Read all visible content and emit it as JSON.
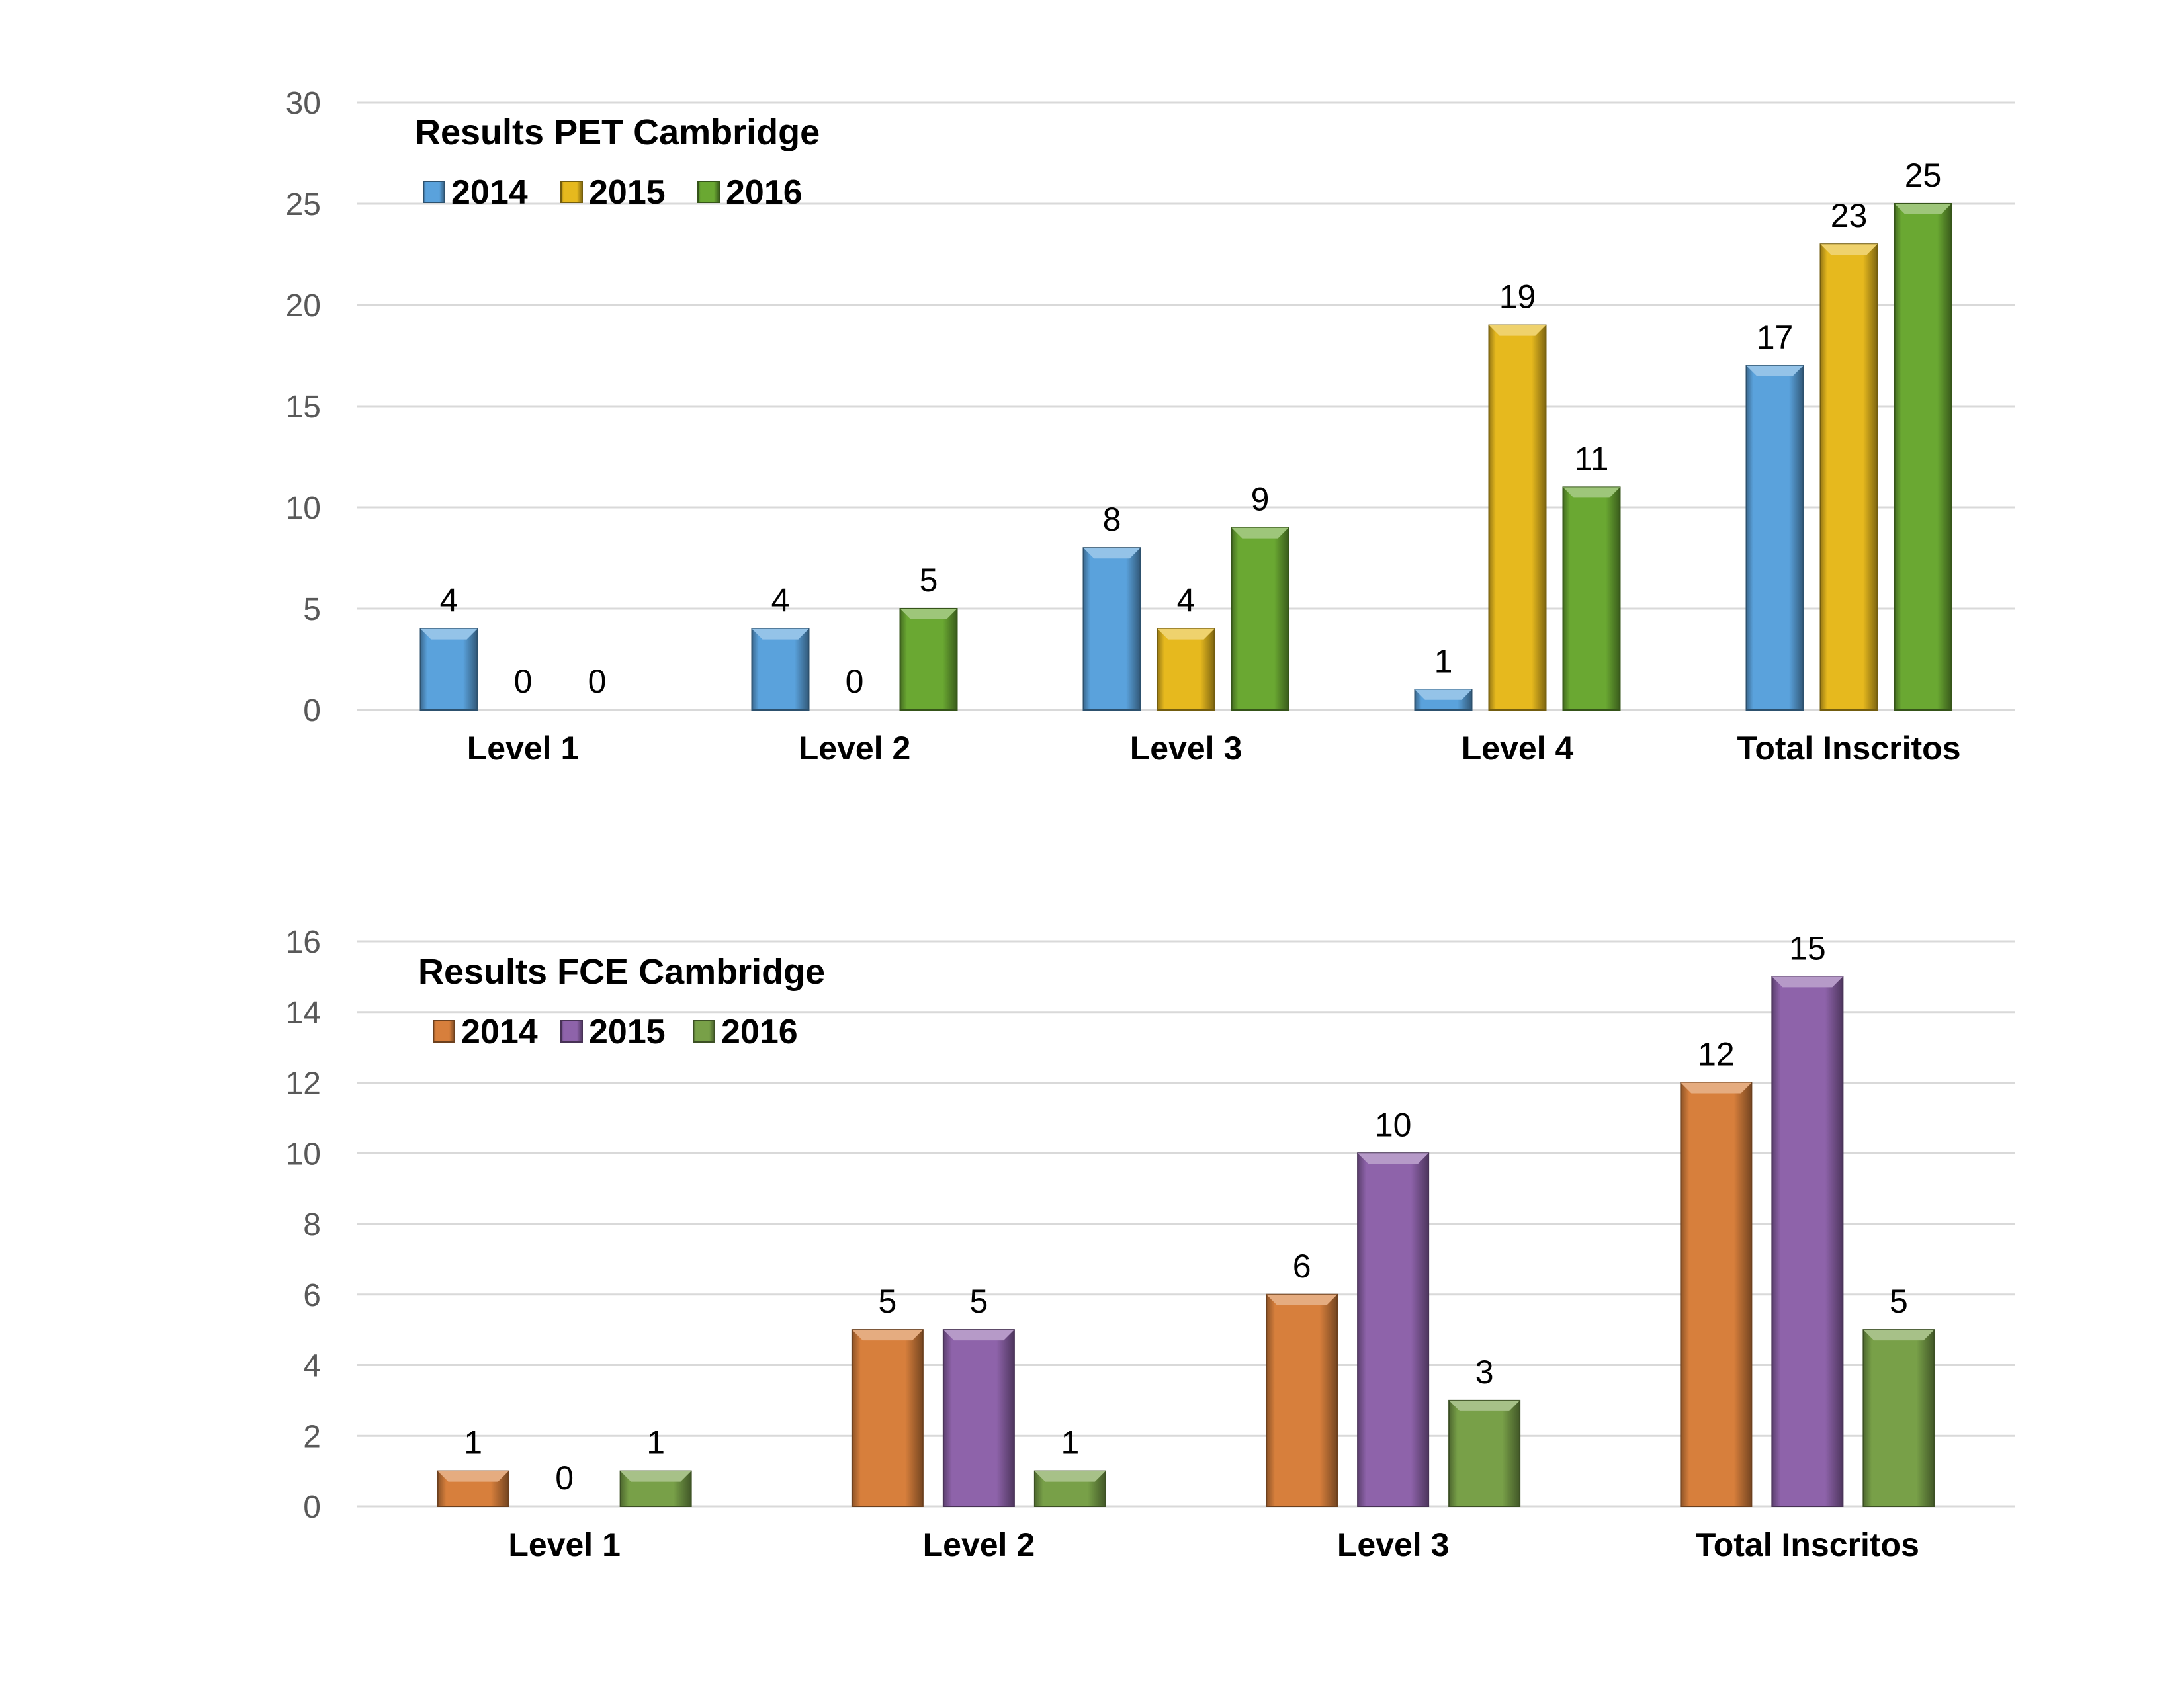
{
  "chart_data": [
    {
      "type": "bar",
      "title": "Results PET Cambridge",
      "categories": [
        "Level 1",
        "Level 2",
        "Level 3",
        "Level 4",
        "Total Inscritos"
      ],
      "series": [
        {
          "name": "2014",
          "values": [
            4,
            4,
            8,
            1,
            17
          ],
          "color": "#5aa2dc"
        },
        {
          "name": "2015",
          "values": [
            0,
            0,
            4,
            19,
            23
          ],
          "color": "#e6b91e"
        },
        {
          "name": "2016",
          "values": [
            0,
            5,
            9,
            11,
            25
          ],
          "color": "#6aa832"
        }
      ],
      "ylim": [
        0,
        30
      ],
      "yticks": [
        0,
        5,
        10,
        15,
        20,
        25,
        30
      ],
      "xlabel": "",
      "ylabel": "",
      "grid": true,
      "legend": "top-left"
    },
    {
      "type": "bar",
      "title": "Results FCE Cambridge",
      "categories": [
        "Level 1",
        "Level 2",
        "Level 3",
        "Total Inscritos"
      ],
      "series": [
        {
          "name": "2014",
          "values": [
            1,
            5,
            6,
            12
          ],
          "color": "#d77f3c"
        },
        {
          "name": "2015",
          "values": [
            0,
            5,
            10,
            15
          ],
          "color": "#8e63aa"
        },
        {
          "name": "2016",
          "values": [
            1,
            1,
            3,
            5
          ],
          "color": "#78a048"
        }
      ],
      "ylim": [
        0,
        16
      ],
      "yticks": [
        0,
        2,
        4,
        6,
        8,
        10,
        12,
        14,
        16
      ],
      "xlabel": "",
      "ylabel": "",
      "grid": true,
      "legend": "top-left"
    }
  ]
}
